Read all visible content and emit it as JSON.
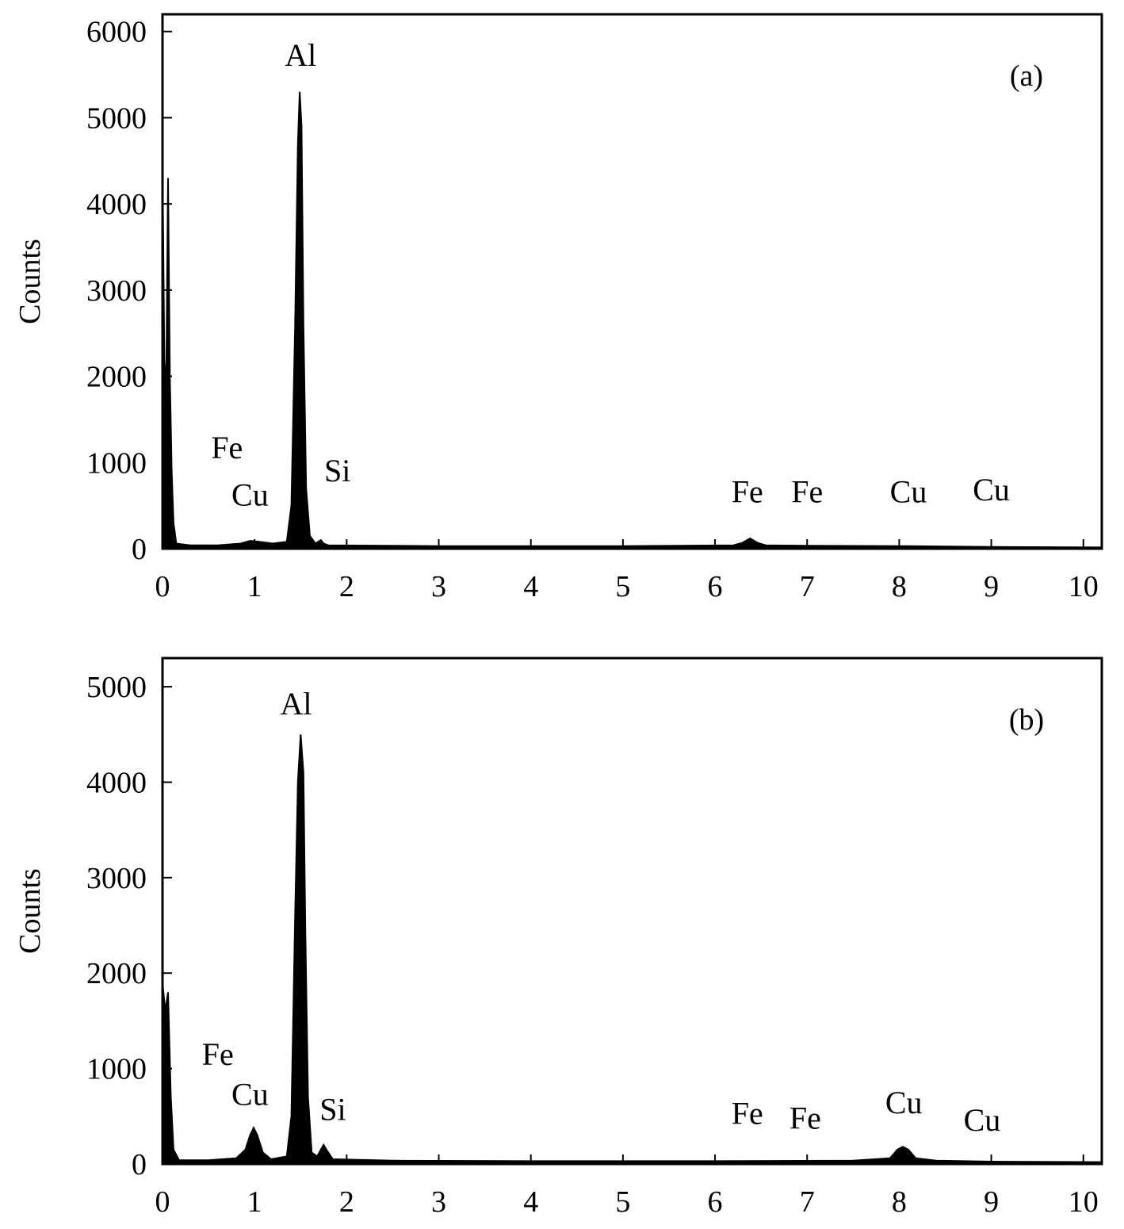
{
  "chart_data": [
    {
      "type": "area",
      "panel_label": "(a)",
      "xlabel": "",
      "ylabel": "Counts",
      "xlim": [
        0,
        10.2
      ],
      "ylim": [
        0,
        6200
      ],
      "x_ticks": [
        0,
        1,
        2,
        3,
        4,
        5,
        6,
        7,
        8,
        9,
        10
      ],
      "y_ticks": [
        0,
        1000,
        2000,
        3000,
        4000,
        5000,
        6000
      ],
      "series": [
        {
          "points": [
            [
              0.0,
              0
            ],
            [
              0.0,
              4500
            ],
            [
              0.02,
              2200
            ],
            [
              0.04,
              1800
            ],
            [
              0.06,
              4300
            ],
            [
              0.08,
              2000
            ],
            [
              0.1,
              900
            ],
            [
              0.12,
              300
            ],
            [
              0.15,
              60
            ],
            [
              0.3,
              40
            ],
            [
              0.6,
              40
            ],
            [
              0.85,
              60
            ],
            [
              0.95,
              90
            ],
            [
              1.05,
              80
            ],
            [
              1.2,
              60
            ],
            [
              1.35,
              80
            ],
            [
              1.4,
              500
            ],
            [
              1.44,
              2600
            ],
            [
              1.47,
              4700
            ],
            [
              1.49,
              5300
            ],
            [
              1.51,
              4900
            ],
            [
              1.53,
              2600
            ],
            [
              1.56,
              700
            ],
            [
              1.6,
              150
            ],
            [
              1.66,
              60
            ],
            [
              1.72,
              100
            ],
            [
              1.75,
              60
            ],
            [
              1.8,
              40
            ],
            [
              3.0,
              30
            ],
            [
              5.0,
              30
            ],
            [
              6.2,
              40
            ],
            [
              6.3,
              70
            ],
            [
              6.38,
              120
            ],
            [
              6.46,
              70
            ],
            [
              6.55,
              40
            ],
            [
              7.0,
              35
            ],
            [
              8.0,
              30
            ],
            [
              9.0,
              20
            ],
            [
              10.2,
              15
            ],
            [
              10.2,
              0
            ]
          ]
        }
      ],
      "annotations": [
        {
          "text": "Al",
          "x": 1.5,
          "y": 5600
        },
        {
          "text": "Fe",
          "x": 0.7,
          "y": 1050
        },
        {
          "text": "Cu",
          "x": 0.95,
          "y": 500
        },
        {
          "text": "Si",
          "x": 1.9,
          "y": 780
        },
        {
          "text": "Fe",
          "x": 6.35,
          "y": 540
        },
        {
          "text": "Fe",
          "x": 7.0,
          "y": 540
        },
        {
          "text": "Cu",
          "x": 8.1,
          "y": 540
        },
        {
          "text": "Cu",
          "x": 9.0,
          "y": 560
        }
      ]
    },
    {
      "type": "area",
      "panel_label": "(b)",
      "xlabel": "",
      "ylabel": "Counts",
      "xlim": [
        0,
        10.2
      ],
      "ylim": [
        0,
        5300
      ],
      "x_ticks": [
        0,
        1,
        2,
        3,
        4,
        5,
        6,
        7,
        8,
        9,
        10
      ],
      "y_ticks": [
        0,
        1000,
        2000,
        3000,
        4000,
        5000
      ],
      "series": [
        {
          "points": [
            [
              0.0,
              0
            ],
            [
              0.0,
              1900
            ],
            [
              0.03,
              1600
            ],
            [
              0.06,
              1800
            ],
            [
              0.09,
              700
            ],
            [
              0.12,
              150
            ],
            [
              0.18,
              40
            ],
            [
              0.5,
              40
            ],
            [
              0.8,
              60
            ],
            [
              0.9,
              150
            ],
            [
              0.95,
              300
            ],
            [
              0.99,
              380
            ],
            [
              1.03,
              300
            ],
            [
              1.09,
              120
            ],
            [
              1.18,
              50
            ],
            [
              1.35,
              80
            ],
            [
              1.4,
              500
            ],
            [
              1.44,
              2600
            ],
            [
              1.47,
              4000
            ],
            [
              1.5,
              4500
            ],
            [
              1.53,
              4100
            ],
            [
              1.55,
              2500
            ],
            [
              1.58,
              700
            ],
            [
              1.62,
              120
            ],
            [
              1.68,
              80
            ],
            [
              1.72,
              150
            ],
            [
              1.75,
              200
            ],
            [
              1.78,
              150
            ],
            [
              1.85,
              50
            ],
            [
              2.5,
              35
            ],
            [
              4.0,
              30
            ],
            [
              6.0,
              30
            ],
            [
              7.5,
              35
            ],
            [
              7.9,
              60
            ],
            [
              7.98,
              150
            ],
            [
              8.04,
              180
            ],
            [
              8.1,
              150
            ],
            [
              8.18,
              60
            ],
            [
              8.4,
              35
            ],
            [
              9.0,
              25
            ],
            [
              10.2,
              20
            ],
            [
              10.2,
              0
            ]
          ]
        }
      ],
      "annotations": [
        {
          "text": "Al",
          "x": 1.45,
          "y": 4710
        },
        {
          "text": "Fe",
          "x": 0.6,
          "y": 1040
        },
        {
          "text": "Cu",
          "x": 0.95,
          "y": 620
        },
        {
          "text": "Si",
          "x": 1.85,
          "y": 460
        },
        {
          "text": "Fe",
          "x": 6.35,
          "y": 420
        },
        {
          "text": "Fe",
          "x": 6.98,
          "y": 370
        },
        {
          "text": "Cu",
          "x": 8.05,
          "y": 530
        },
        {
          "text": "Cu",
          "x": 8.9,
          "y": 350
        }
      ]
    }
  ],
  "colors": {
    "fill": "#000000",
    "frame": "#000000",
    "background": "#ffffff"
  }
}
